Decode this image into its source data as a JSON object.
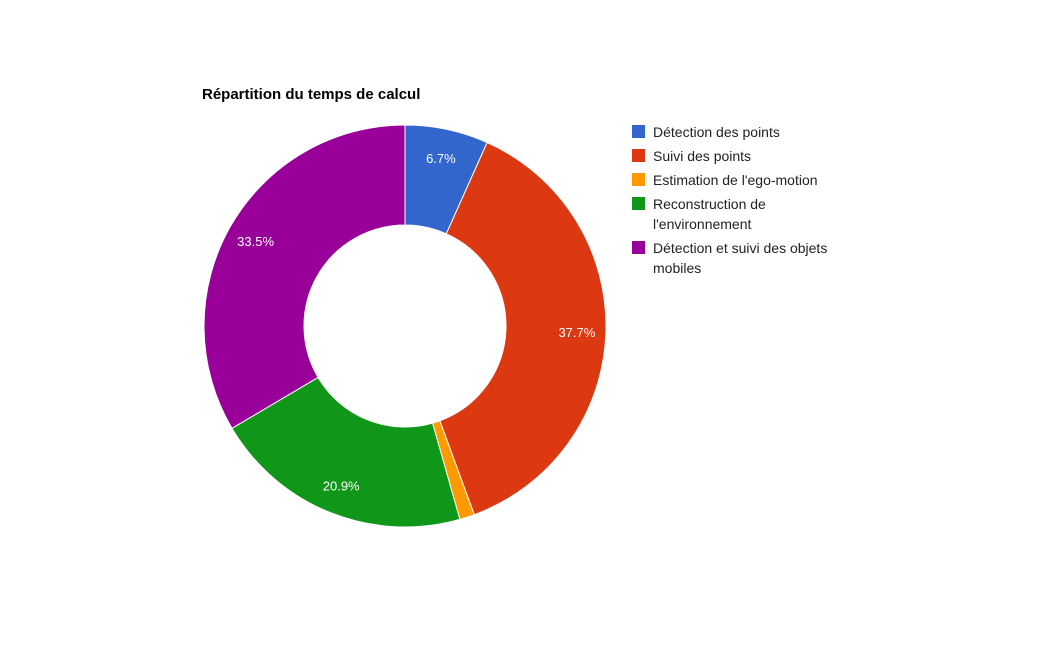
{
  "chart_data": {
    "type": "pie",
    "donut": true,
    "title": "Répartition du temps de calcul",
    "slices": [
      {
        "label": "Détection des points",
        "value": 6.7,
        "display": "6.7%",
        "color": "#3366cc"
      },
      {
        "label": "Suivi des points",
        "value": 37.7,
        "display": "37.7%",
        "color": "#dc3912"
      },
      {
        "label": "Estimation de l'ego-motion",
        "value": 1.2,
        "display": "",
        "color": "#ff9900"
      },
      {
        "label": "Reconstruction de l'environnement",
        "value": 20.9,
        "display": "20.9%",
        "color": "#109618"
      },
      {
        "label": "Détection et suivi des objets mobiles",
        "value": 33.5,
        "display": "33.5%",
        "color": "#990099"
      }
    ],
    "legend": {
      "position": "right",
      "lines": [
        [
          "Détection des points"
        ],
        [
          "Suivi des points"
        ],
        [
          "Estimation de l'ego-motion"
        ],
        [
          "Reconstruction de",
          "l'environnement"
        ],
        [
          "Détection et suivi des objets",
          "mobiles"
        ]
      ]
    }
  }
}
